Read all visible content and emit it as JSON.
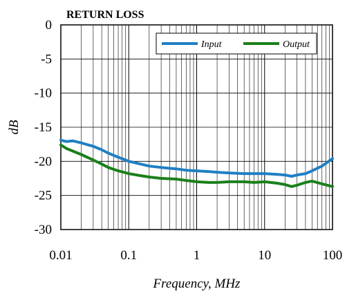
{
  "chart_data": {
    "type": "line",
    "title": "RETURN LOSS",
    "xlabel": "Frequency, MHz",
    "ylabel": "dB",
    "xscale": "log",
    "xlim": [
      0.01,
      100
    ],
    "ylim": [
      -30,
      0
    ],
    "xticks": [
      0.01,
      0.1,
      1,
      10,
      100
    ],
    "xtick_labels": [
      "0.01",
      "0.1",
      "1",
      "10",
      "100"
    ],
    "yticks": [
      0,
      -5,
      -10,
      -15,
      -20,
      -25,
      -30
    ],
    "ytick_labels": [
      "0",
      "-5",
      "-10",
      "-15",
      "-20",
      "-25",
      "-30"
    ],
    "grid": true,
    "legend_position": "top-right",
    "series": [
      {
        "name": "Input",
        "color": "#1f7fc4",
        "x": [
          0.01,
          0.012,
          0.015,
          0.02,
          0.03,
          0.04,
          0.05,
          0.07,
          0.1,
          0.15,
          0.2,
          0.3,
          0.5,
          0.7,
          1,
          1.5,
          2,
          3,
          5,
          7,
          10,
          15,
          20,
          25,
          30,
          40,
          50,
          70,
          100
        ],
        "y": [
          -16.9,
          -17.1,
          -17.0,
          -17.3,
          -17.8,
          -18.3,
          -18.8,
          -19.4,
          -20.0,
          -20.4,
          -20.7,
          -20.9,
          -21.1,
          -21.3,
          -21.4,
          -21.5,
          -21.6,
          -21.7,
          -21.8,
          -21.8,
          -21.8,
          -21.9,
          -22.0,
          -22.2,
          -22.0,
          -21.8,
          -21.4,
          -20.7,
          -19.6
        ]
      },
      {
        "name": "Output",
        "color": "#1a7f1a",
        "x": [
          0.01,
          0.012,
          0.015,
          0.02,
          0.03,
          0.04,
          0.05,
          0.07,
          0.1,
          0.15,
          0.2,
          0.3,
          0.5,
          0.7,
          1,
          1.5,
          2,
          3,
          5,
          7,
          10,
          15,
          20,
          25,
          30,
          40,
          50,
          70,
          100
        ],
        "y": [
          -17.6,
          -18.1,
          -18.5,
          -19.0,
          -19.8,
          -20.4,
          -20.9,
          -21.4,
          -21.8,
          -22.1,
          -22.3,
          -22.5,
          -22.6,
          -22.8,
          -23.0,
          -23.1,
          -23.1,
          -23.0,
          -23.0,
          -23.1,
          -23.0,
          -23.2,
          -23.4,
          -23.7,
          -23.5,
          -23.1,
          -22.9,
          -23.3,
          -23.7
        ]
      }
    ]
  }
}
